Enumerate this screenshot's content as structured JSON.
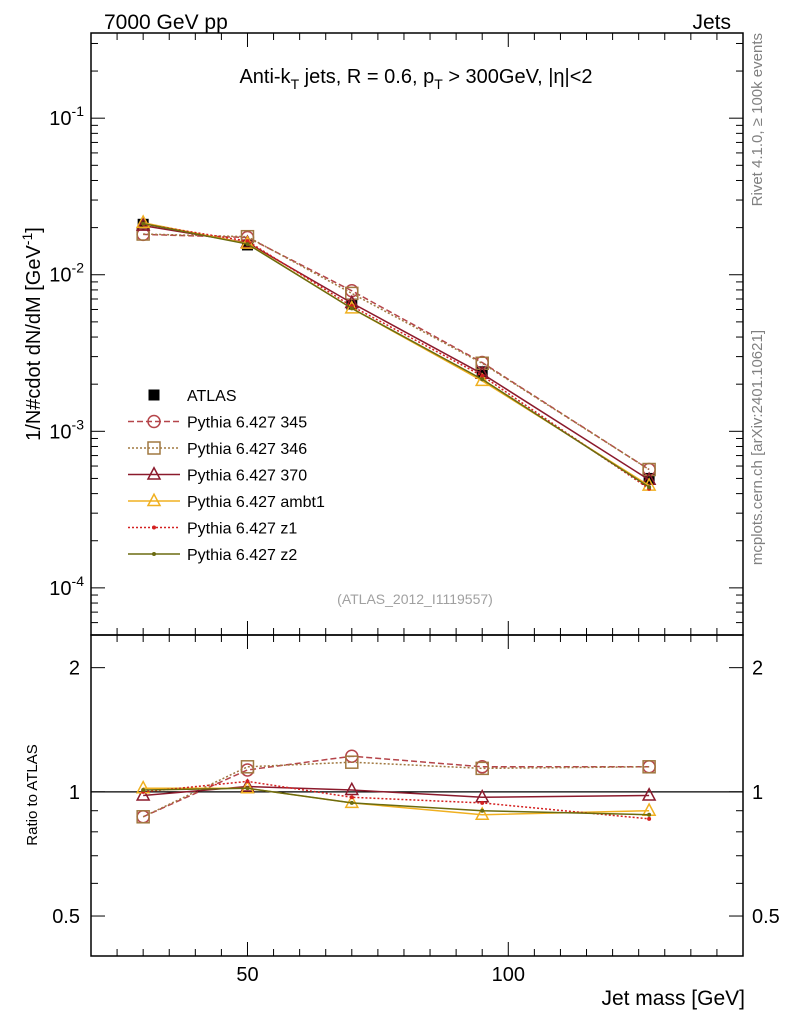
{
  "header": {
    "left_label": "7000 GeV pp",
    "right_label": "Jets"
  },
  "side_text": {
    "rivet": "Rivet 4.1.0, ≥ 100k events",
    "mcplots": "mcplots.cern.ch [arXiv:2401.10621]"
  },
  "main_plot": {
    "title": "Anti-k_T jets, R = 0.6, p_T > 300GeV, |η|<2",
    "ylabel": "1/N#cdot dN/dM [GeV^-1]",
    "watermark": "(ATLAS_2012_I1119557)",
    "y_tick_labels": [
      "10^-1",
      "10^-2",
      "10^-3",
      "10^-4"
    ]
  },
  "ratio_plot": {
    "ylabel": "Ratio to ATLAS",
    "y_tick_labels": [
      "2",
      "1",
      "0.5"
    ]
  },
  "x_axis": {
    "label": "Jet mass [GeV]",
    "tick_labels": [
      "50",
      "100"
    ]
  },
  "chart_data": {
    "type": "line",
    "title": "Anti-k_T jets, R = 0.6, p_T > 300GeV, |η|<2",
    "xlabel": "Jet mass [GeV]",
    "ylabel": "1/N#cdot dN/dM [GeV^-1]",
    "ratio_ylabel": "Ratio to ATLAS",
    "xlim": [
      20,
      145
    ],
    "ylim": [
      5e-05,
      0.35
    ],
    "ratio_ylim": [
      0.4,
      2.4
    ],
    "yscale": "log",
    "x": [
      30,
      50,
      70,
      95,
      127
    ],
    "legend_position": "middle-left",
    "series": [
      {
        "name": "ATLAS",
        "color": "#000000",
        "marker": "square-filled",
        "line": "none",
        "values": [
          0.021,
          0.0155,
          0.0065,
          0.0024,
          0.0005
        ]
      },
      {
        "name": "Pythia 6.427 345",
        "color": "#b5454a",
        "marker": "circle-open",
        "line": "dashed",
        "values": [
          0.0181,
          0.0173,
          0.0079,
          0.00275,
          0.00057
        ],
        "ratio": [
          0.87,
          1.13,
          1.22,
          1.15,
          1.15
        ]
      },
      {
        "name": "Pythia 6.427 346",
        "color": "#a07840",
        "marker": "square-open",
        "line": "dotted",
        "values": [
          0.0182,
          0.0175,
          0.0076,
          0.00272,
          0.00057
        ],
        "ratio": [
          0.87,
          1.15,
          1.18,
          1.14,
          1.15
        ]
      },
      {
        "name": "Pythia 6.427 370",
        "color": "#8b1a2c",
        "marker": "triangle-open",
        "line": "solid",
        "values": [
          0.0206,
          0.016,
          0.0066,
          0.00233,
          0.00049
        ],
        "ratio": [
          0.98,
          1.03,
          1.01,
          0.97,
          0.98
        ]
      },
      {
        "name": "Pythia 6.427 ambt1",
        "color": "#f0b020",
        "marker": "triangle-open",
        "line": "solid",
        "values": [
          0.0215,
          0.0158,
          0.0061,
          0.0021,
          0.00045
        ],
        "ratio": [
          1.02,
          1.02,
          0.94,
          0.88,
          0.9
        ]
      },
      {
        "name": "Pythia 6.427 z1",
        "color": "#d42020",
        "marker": "dot",
        "line": "dotted",
        "values": [
          0.0211,
          0.0164,
          0.0063,
          0.00226,
          0.00043
        ],
        "ratio": [
          1.0,
          1.06,
          0.97,
          0.94,
          0.86
        ]
      },
      {
        "name": "Pythia 6.427 z2",
        "color": "#6b6b10",
        "marker": "dot",
        "line": "solid",
        "values": [
          0.0212,
          0.0157,
          0.0061,
          0.00215,
          0.00044
        ],
        "ratio": [
          1.01,
          1.02,
          0.94,
          0.9,
          0.88
        ]
      }
    ]
  }
}
